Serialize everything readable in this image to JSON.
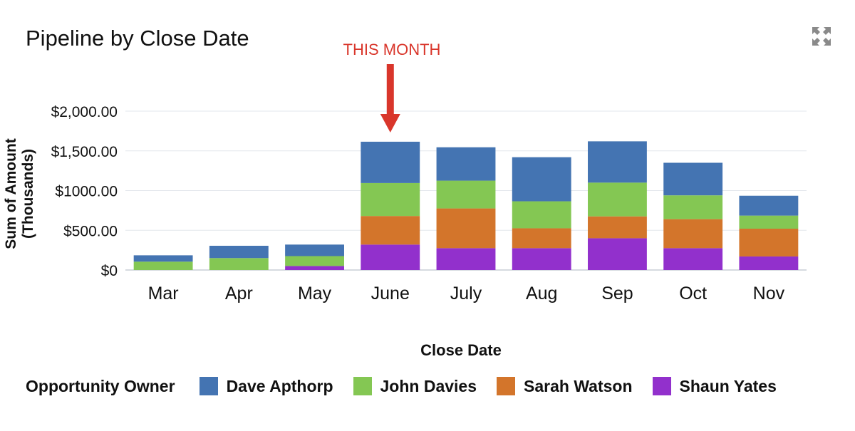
{
  "header": {
    "title": "Pipeline by Close Date",
    "expand_icon": "expand-arrows-icon"
  },
  "annotation": {
    "text": "THIS MONTH",
    "color": "#d9362b",
    "category": "June"
  },
  "legend": {
    "title": "Opportunity Owner"
  },
  "chart_data": {
    "type": "bar",
    "stacked": true,
    "title": "Pipeline by Close Date",
    "xlabel": "Close Date",
    "ylabel": "Sum of Amount (Thousands)",
    "ylabel_lines": [
      "Sum of Amount",
      "(Thousands)"
    ],
    "ylim": [
      0,
      2000
    ],
    "yticks": [
      0,
      500,
      1000,
      1500,
      2000
    ],
    "ytick_labels": [
      "$0",
      "$500.00",
      "$1000.00",
      "$1,500.00",
      "$2,000.00"
    ],
    "grid": true,
    "legend_position": "bottom",
    "categories": [
      "Mar",
      "Apr",
      "May",
      "June",
      "July",
      "Aug",
      "Sep",
      "Oct",
      "Nov"
    ],
    "series": [
      {
        "name": "Shaun Yates",
        "color": "#9230cc",
        "values": [
          0,
          0,
          50,
          320,
          275,
          275,
          400,
          275,
          170
        ]
      },
      {
        "name": "Sarah Watson",
        "color": "#d3752b",
        "values": [
          0,
          0,
          0,
          360,
          500,
          250,
          275,
          365,
          350
        ]
      },
      {
        "name": "John Davies",
        "color": "#84c753",
        "values": [
          105,
          150,
          125,
          415,
          350,
          340,
          425,
          300,
          165
        ]
      },
      {
        "name": "Dave Apthorp",
        "color": "#4474b2",
        "values": [
          80,
          155,
          145,
          520,
          420,
          555,
          520,
          410,
          250
        ]
      }
    ],
    "legend_order": [
      "Dave Apthorp",
      "John Davies",
      "Sarah Watson",
      "Shaun Yates"
    ]
  }
}
